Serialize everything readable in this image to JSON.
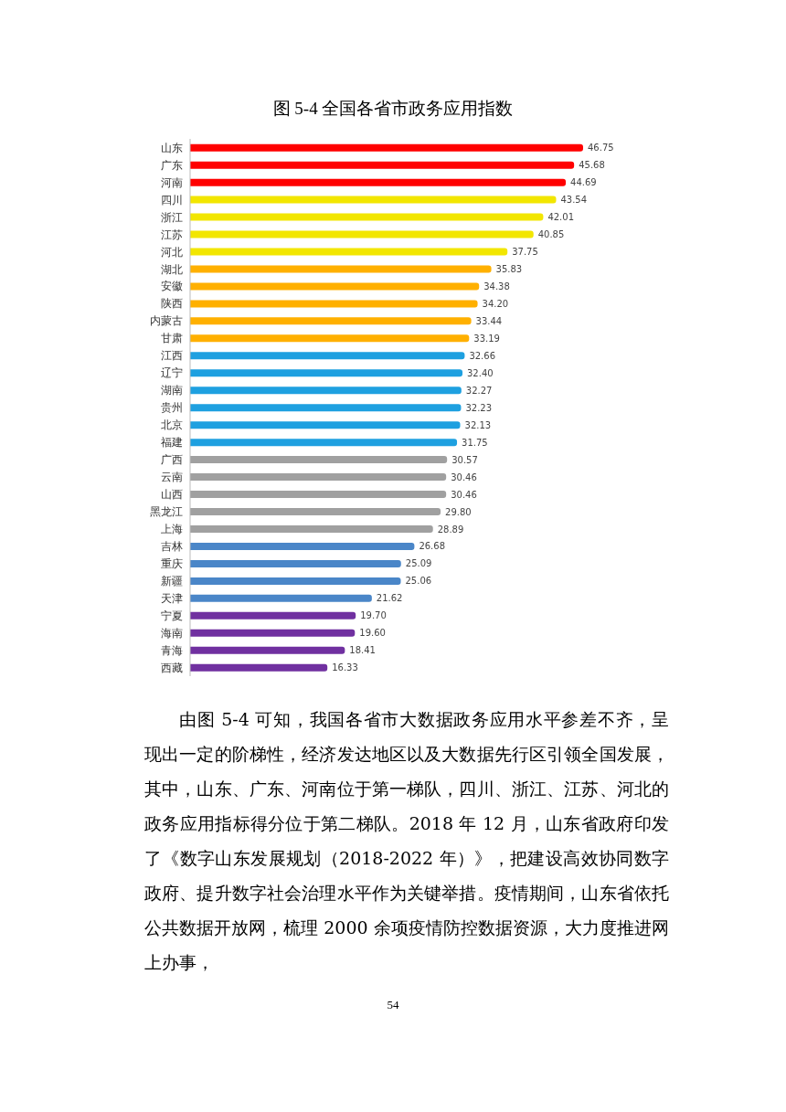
{
  "chart_data": {
    "type": "bar",
    "orientation": "horizontal",
    "title": "图 5-4  全国各省市政务应用指数",
    "categories": [
      "山东",
      "广东",
      "河南",
      "四川",
      "浙江",
      "江苏",
      "河北",
      "湖北",
      "安徽",
      "陕西",
      "内蒙古",
      "甘肃",
      "江西",
      "辽宁",
      "湖南",
      "贵州",
      "北京",
      "福建",
      "广西",
      "云南",
      "山西",
      "黑龙江",
      "上海",
      "吉林",
      "重庆",
      "新疆",
      "天津",
      "宁夏",
      "海南",
      "青海",
      "西藏"
    ],
    "values": [
      46.75,
      45.68,
      44.69,
      43.54,
      42.01,
      40.85,
      37.75,
      35.83,
      34.38,
      34.2,
      33.44,
      33.19,
      32.66,
      32.4,
      32.27,
      32.23,
      32.13,
      31.75,
      30.57,
      30.46,
      30.46,
      29.8,
      28.89,
      26.68,
      25.09,
      25.06,
      21.62,
      19.7,
      19.6,
      18.41,
      16.33
    ],
    "colors": [
      "#ff0000",
      "#ff0000",
      "#ff0000",
      "#f2e600",
      "#f2e600",
      "#f2e600",
      "#f2e600",
      "#ffb000",
      "#ffb000",
      "#ffb000",
      "#ffb000",
      "#ffb000",
      "#1ea0e0",
      "#1ea0e0",
      "#1ea0e0",
      "#1ea0e0",
      "#1ea0e0",
      "#1ea0e0",
      "#a0a0a0",
      "#a0a0a0",
      "#a0a0a0",
      "#a0a0a0",
      "#a0a0a0",
      "#4a86c8",
      "#4a86c8",
      "#4a86c8",
      "#4a86c8",
      "#7030a0",
      "#7030a0",
      "#7030a0",
      "#7030a0"
    ],
    "data_labels": true,
    "value_labels": [
      "46.75",
      "45.68",
      "44.69",
      "43.54",
      "42.01",
      "40.85",
      "37.75",
      "35.83",
      "34.38",
      "34.20",
      "33.44",
      "33.19",
      "32.66",
      "32.40",
      "32.27",
      "32.23",
      "32.13",
      "31.75",
      "30.57",
      "30.46",
      "30.46",
      "29.80",
      "28.89",
      "26.68",
      "25.09",
      "25.06",
      "21.62",
      "19.70",
      "19.60",
      "18.41",
      "16.33"
    ],
    "annotations": [
      "由图 5-4 可知，我国各省市大数据政务应用水平参差不齐，呈现出一定的阶梯性，经济发达地区以及大数据先行区引领全国发展，其中，山东、广东、河南位于第一梯队，四川、浙江、江苏、河北的政务应用指标得分位于第二梯队。2018 年 12 月，山东省政府印发了《数字山东发展规划（2018-2022 年）》，把建设高效协同数字政府、提升数字社会治理水平作为关键举措。疫情期间，山东省依托公共数据开放网，梳理 2000 余项疫情防控数据资源，大力度推进网上办事，",
      "54"
    ]
  }
}
